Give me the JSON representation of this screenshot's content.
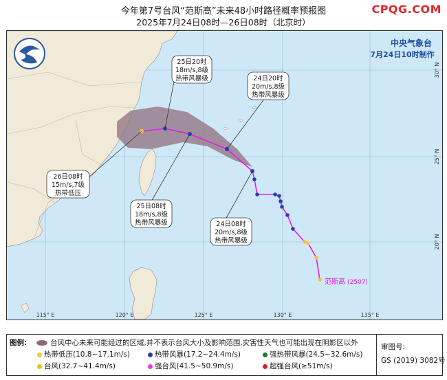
{
  "title_line1": "今年第7号台风“范斯高”未来48小时路径概率预报图",
  "title_line2": "2025年7月24日08时—26日08时（北京时）",
  "site_watermark": "CPQG.COM",
  "agency": "中央气象台",
  "issued": "7月24日10时制作",
  "typhoon_label": "范斯高",
  "typhoon_id": "(2507)",
  "lon_labels": [
    "115° E",
    "120° E",
    "125° E",
    "130° E",
    "135° E"
  ],
  "lat_labels": [
    "30° N",
    "25° N",
    "20° N"
  ],
  "forecasts": {
    "f25_20": {
      "time": "25日20时",
      "wind": "18m/s,8级",
      "grade": "热带风暴级"
    },
    "f24_20": {
      "time": "24日20时",
      "wind": "20m/s,8级",
      "grade": "热带风暴级"
    },
    "f26_08": {
      "time": "26日08时",
      "wind": "15m/s,7级",
      "grade": "热带低压"
    },
    "f25_08": {
      "time": "25日08时",
      "wind": "18m/s,8级",
      "grade": "热带风暴级"
    },
    "f24_08": {
      "time": "24日08时",
      "wind": "20m/s,8级",
      "grade": "热带风暴级"
    }
  },
  "legend": {
    "heading": "图例:",
    "cone": "台风中心未来可能经过的区域,并不表示台风大小及影响范围,灾害性天气也可能出现在阴影区以外",
    "td": "热带低压(10.8~17.1m/s)",
    "ts": "热带风暴(17.2~24.4m/s)",
    "sts": "强热带风暴(24.5~32.6m/s)",
    "ty": "台风(32.7~41.4m/s)",
    "sty": "强台风(41.5~50.9m/s)",
    "supty": "超强台风(≥51m/s)",
    "review_label": "审图号:",
    "review_no": "GS (2019) 3082号"
  },
  "colors": {
    "sea": "#cfe8f7",
    "land": "#f2ead9",
    "track": "#e21ee2",
    "td": "#f5c242",
    "ts": "#2a3fb5",
    "sts": "#1a7a2e",
    "ty": "#f5b921",
    "sty": "#e040e0",
    "supty": "#d2232a",
    "cone": "#8e6b7a"
  }
}
